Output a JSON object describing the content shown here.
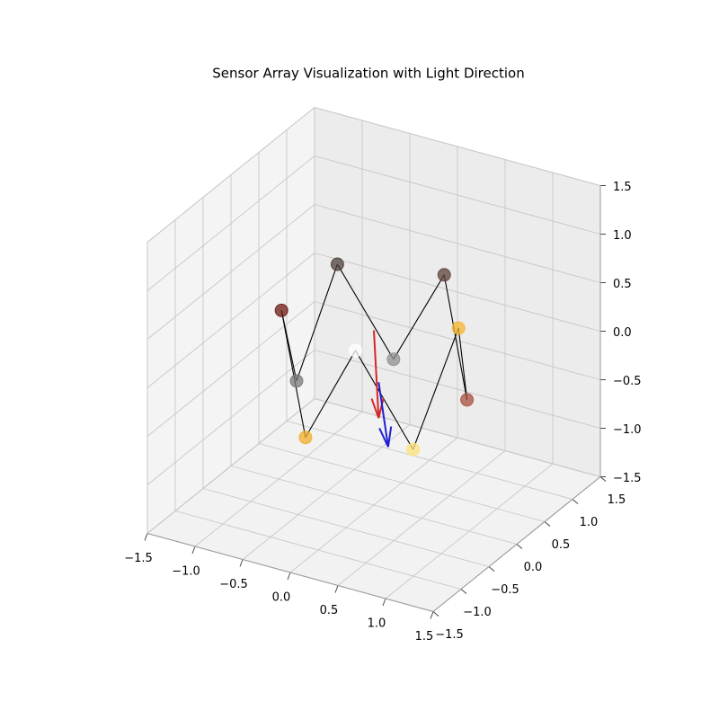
{
  "chart_data": {
    "type": "scatter3d",
    "title": "Sensor Array Visualization with Light Direction",
    "x": [
      -0.73,
      -0.87,
      -0.74,
      -0.32,
      0.2,
      0.65,
      0.83,
      0.71,
      0.24,
      -0.25
    ],
    "y": [
      -0.41,
      0.1,
      0.61,
      0.9,
      0.92,
      0.56,
      0.1,
      -0.51,
      -0.74,
      -0.8
    ],
    "z": [
      0.5,
      -0.5,
      0.5,
      -0.5,
      0.5,
      -0.5,
      0.5,
      -0.5,
      0.5,
      -0.5
    ],
    "colors": [
      "#6b1a14",
      "#7a7a7a",
      "#4f403b",
      "#909090",
      "#5e4038",
      "#a8503f",
      "#f5b52e",
      "#fce27a",
      "#ffffff",
      "#f0ad2a"
    ],
    "closed": true,
    "arrows": [
      {
        "color": "#d62728",
        "start": [
          0,
          0,
          0.3
        ],
        "vector": [
          0.05,
          0,
          -0.89
        ]
      },
      {
        "color": "#1f1fd6",
        "start": [
          0.05,
          0,
          -0.22
        ],
        "vector": [
          0.1,
          0,
          -0.64
        ]
      }
    ],
    "xlim": [
      -1.5,
      1.5
    ],
    "ylim": [
      -1.5,
      1.5
    ],
    "zlim": [
      -1.5,
      1.5
    ],
    "xticks": [
      {
        "value": -1.5,
        "label": "−1.5"
      },
      {
        "value": -1.0,
        "label": "−1.0"
      },
      {
        "value": -0.5,
        "label": "−0.5"
      },
      {
        "value": 0,
        "label": "0.0"
      },
      0.5,
      {
        "value": 1.0,
        "label": "1.0"
      },
      1.5
    ],
    "yticks": [
      {
        "value": -1.5,
        "label": "−1.5"
      },
      {
        "value": -1.0,
        "label": "−1.0"
      },
      {
        "value": -0.5,
        "label": "−0.5"
      },
      {
        "value": 0,
        "label": "0.0"
      },
      0.5,
      {
        "value": 1.0,
        "label": "1.0"
      },
      1.5
    ],
    "zticks": [
      {
        "value": -1.5,
        "label": "−1.5"
      },
      {
        "value": -1.0,
        "label": "−1.0"
      },
      {
        "value": -0.5,
        "label": "−0.5"
      },
      {
        "value": 0,
        "label": "0.0"
      },
      0.5,
      {
        "value": 1.0,
        "label": "1.0"
      },
      1.5
    ],
    "grid": true
  }
}
